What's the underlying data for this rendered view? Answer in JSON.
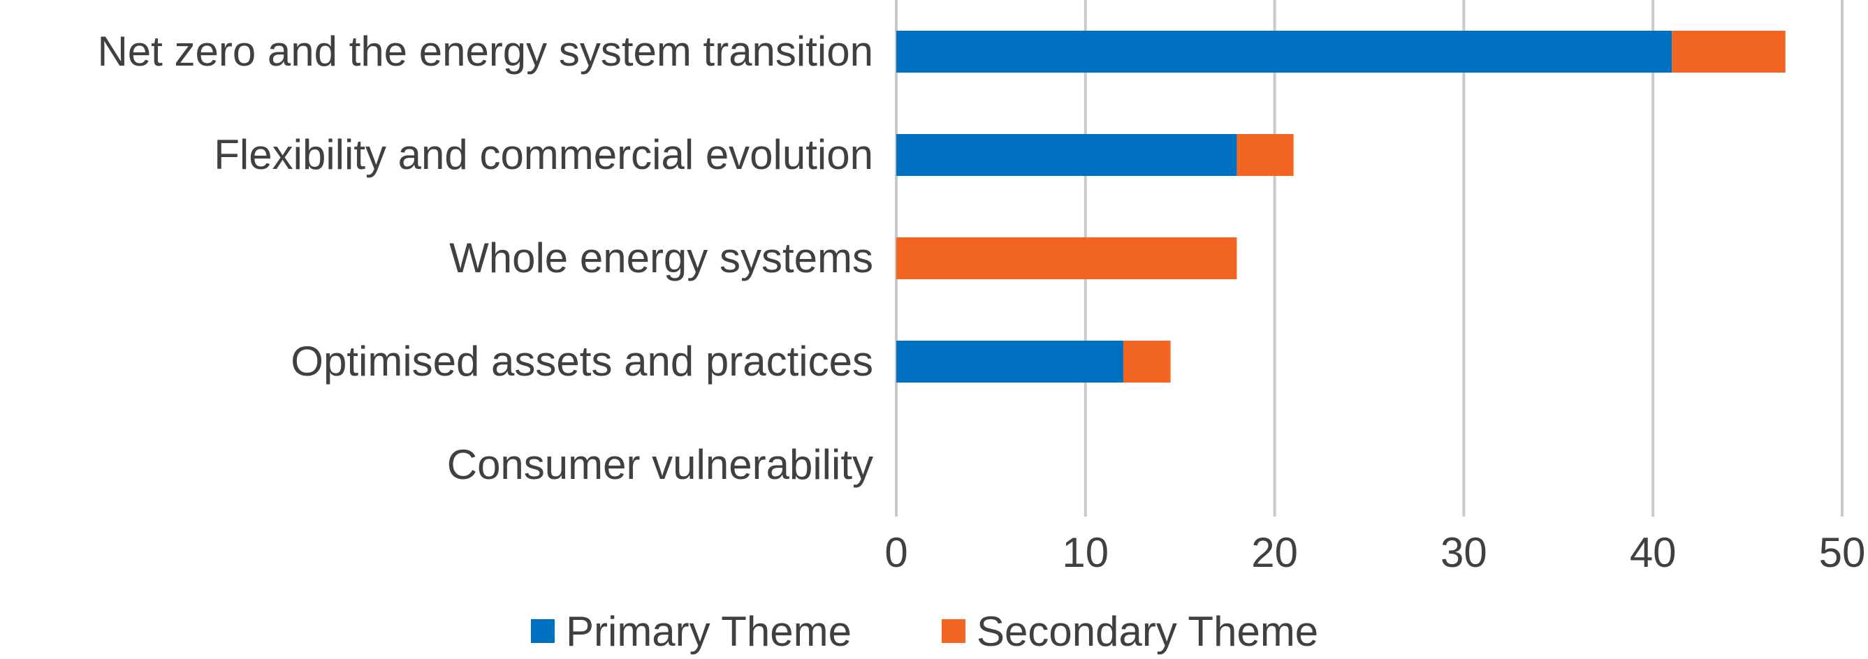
{
  "chart_data": {
    "type": "bar",
    "orientation": "horizontal",
    "stacked": true,
    "categories": [
      "Net zero and the energy system transition",
      "Flexibility and commercial evolution",
      "Whole energy systems",
      "Optimised assets and practices",
      "Consumer vulnerability"
    ],
    "series": [
      {
        "name": "Primary Theme",
        "values": [
          41,
          18,
          0,
          12,
          0
        ],
        "color": "#0070C0"
      },
      {
        "name": "Secondary Theme",
        "values": [
          6,
          3,
          18,
          2.5,
          0
        ],
        "color": "#F26522"
      }
    ],
    "xlim": [
      0,
      50
    ],
    "xticks": [
      "0",
      "10",
      "20",
      "30",
      "40",
      "50"
    ],
    "grid": true,
    "legend_position": "bottom",
    "title": "",
    "xlabel": "",
    "ylabel": ""
  }
}
